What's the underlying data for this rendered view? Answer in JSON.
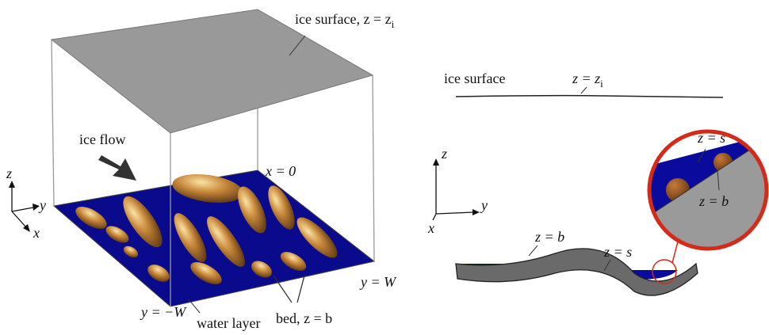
{
  "left_panel": {
    "ice_surface_label": {
      "text": "ice surface, z = z",
      "subscript": "i"
    },
    "ice_flow_label": "ice flow",
    "x_zero_label": "x = 0",
    "y_w_label": "y = W",
    "y_minus_w_label": "y = −W",
    "water_layer_label": "water layer",
    "bed_label": "bed, z = b",
    "axes": {
      "z": "z",
      "y": "y",
      "x": "x"
    }
  },
  "right_panel": {
    "ice_surface_label": "ice surface",
    "ice_surface_eq": {
      "text": "z = z",
      "subscript": "i"
    },
    "axes": {
      "z": "z",
      "y": "y",
      "x": "x"
    },
    "bed_label": "z = b",
    "water_surface_label": "z = s",
    "inset": {
      "water_surface_label": "z = s",
      "bed_label": "z = b"
    }
  }
}
